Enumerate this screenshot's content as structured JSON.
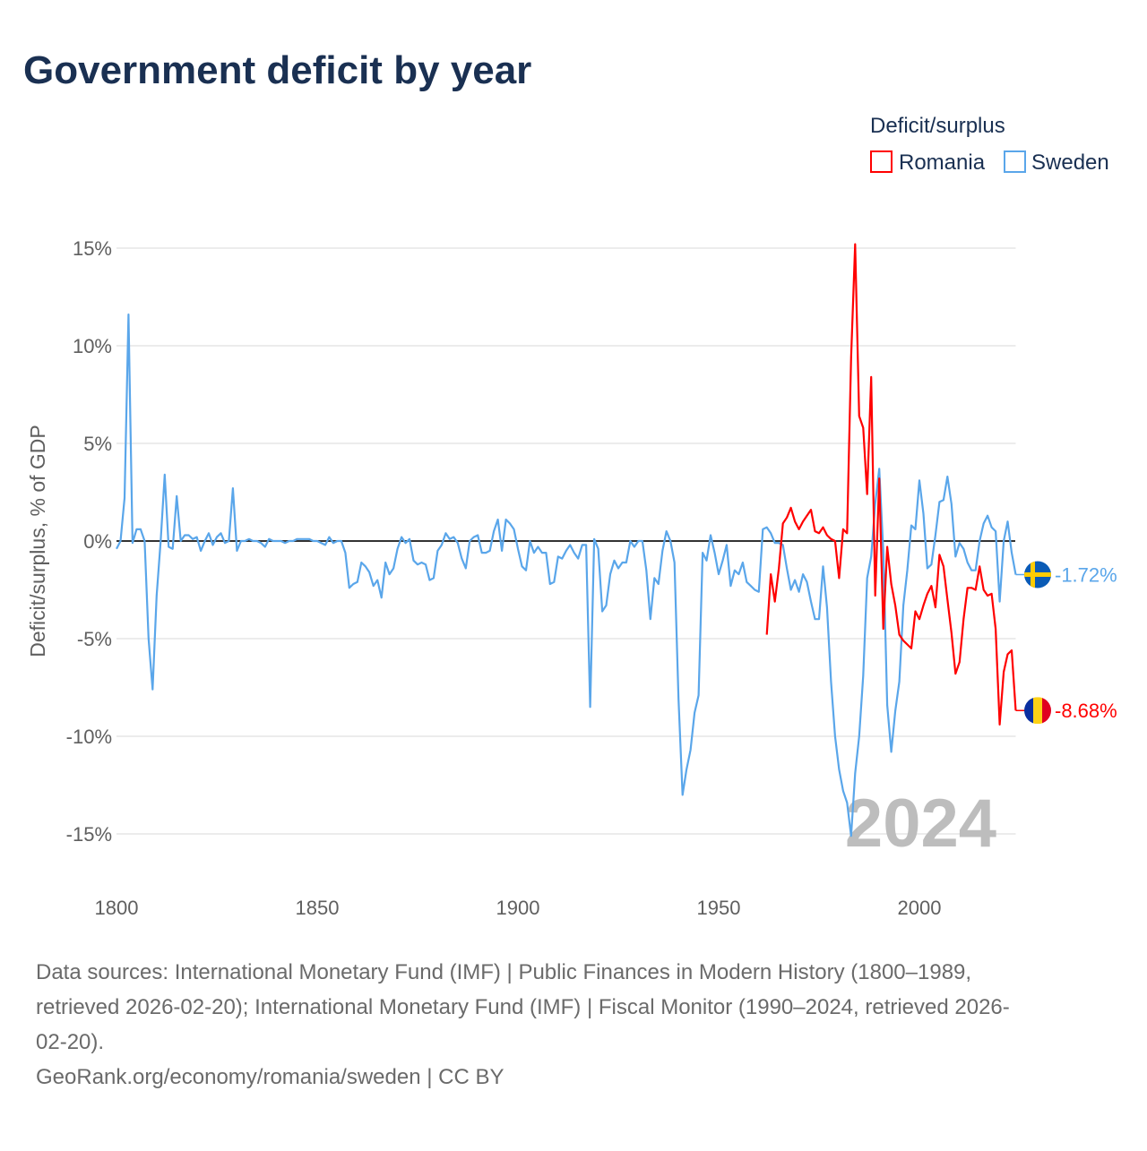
{
  "chart_data": {
    "type": "line",
    "title": "Government deficit by year",
    "ylabel": "Deficit/surplus, % of GDP",
    "xlabel": "",
    "xlim": [
      1800,
      2024
    ],
    "ylim": [
      -15,
      15
    ],
    "x_ticks": [
      1800,
      1850,
      1900,
      1950,
      2000
    ],
    "x_tick_labels": [
      "1800",
      "1850",
      "1900",
      "1950",
      "2000"
    ],
    "y_ticks": [
      15,
      10,
      5,
      0,
      -5,
      -10,
      -15
    ],
    "y_tick_labels": [
      "15%",
      "10%",
      "5%",
      "0%",
      "-5%",
      "-10%",
      "-15%"
    ],
    "grid": true,
    "legend": {
      "title": "Deficit/surplus",
      "placement": "top-right"
    },
    "year_watermark": "2024",
    "series": [
      {
        "name": "Romania",
        "color": "#ff0000",
        "start_year": 1962,
        "end_label": "-8.68%",
        "flag": "romania-flag",
        "values": [
          -4.8,
          -1.7,
          -3.1,
          -1.4,
          0.9,
          1.2,
          1.7,
          1.0,
          0.6,
          1.0,
          1.3,
          1.6,
          0.5,
          0.4,
          0.7,
          0.3,
          0.1,
          0.0,
          -1.9,
          0.6,
          0.4,
          9.4,
          15.2,
          6.4,
          5.8,
          2.4,
          8.4,
          -2.8,
          3.2,
          -4.5,
          -0.3,
          -2.2,
          -3.3,
          -4.8,
          -5.1,
          -5.3,
          -5.5,
          -3.6,
          -4.0,
          -3.3,
          -2.7,
          -2.3,
          -3.4,
          -0.7,
          -1.3,
          -3.0,
          -4.7,
          -6.8,
          -6.2,
          -4.0,
          -2.4,
          -2.4,
          -2.5,
          -1.3,
          -2.5,
          -2.8,
          -2.7,
          -4.5,
          -9.4,
          -6.7,
          -5.8,
          -5.6,
          -8.68
        ]
      },
      {
        "name": "Sweden",
        "color": "#5aa6ea",
        "start_year": 1800,
        "end_label": "-1.72%",
        "flag": "sweden-flag",
        "values": [
          -0.4,
          0,
          2.2,
          11.6,
          -0.1,
          0.6,
          0.6,
          0,
          -5.0,
          -7.6,
          -2.8,
          0,
          3.4,
          -0.3,
          -0.4,
          2.3,
          0,
          0.3,
          0.3,
          0.1,
          0.2,
          -0.5,
          0,
          0.4,
          -0.2,
          0.2,
          0.4,
          -0.1,
          0,
          2.7,
          -0.5,
          0,
          0,
          0.1,
          0,
          0,
          -0.1,
          -0.3,
          0.1,
          0,
          0,
          0,
          -0.1,
          0,
          0,
          0.1,
          0.1,
          0.1,
          0.1,
          0,
          0,
          -0.1,
          -0.2,
          0.2,
          -0.1,
          0,
          0,
          -0.6,
          -2.4,
          -2.2,
          -2.1,
          -1.1,
          -1.3,
          -1.6,
          -2.3,
          -2.0,
          -2.9,
          -1.1,
          -1.7,
          -1.4,
          -0.4,
          0.2,
          -0.1,
          0.1,
          -1.0,
          -1.2,
          -1.1,
          -1.2,
          -2.0,
          -1.9,
          -0.5,
          -0.2,
          0.4,
          0.1,
          0.2,
          -0.1,
          -0.9,
          -1.4,
          0,
          0.2,
          0.3,
          -0.6,
          -0.6,
          -0.5,
          0.5,
          1.1,
          -0.5,
          1.1,
          0.9,
          0.6,
          -0.4,
          -1.3,
          -1.5,
          0,
          -0.6,
          -0.3,
          -0.6,
          -0.6,
          -2.2,
          -2.1,
          -0.8,
          -0.9,
          -0.5,
          -0.2,
          -0.6,
          -0.9,
          -0.2,
          -0.2,
          -8.5,
          0.1,
          -0.4,
          -3.6,
          -3.3,
          -1.7,
          -1.0,
          -1.4,
          -1.1,
          -1.1,
          0,
          -0.3,
          0,
          0,
          -1.5,
          -4.0,
          -1.9,
          -2.2,
          -0.5,
          0.5,
          0,
          -1.1,
          -8.1,
          -13.0,
          -11.7,
          -10.7,
          -8.8,
          -7.9,
          -0.6,
          -1.0,
          0.3,
          -0.6,
          -1.7,
          -1.0,
          -0.2,
          -2.3,
          -1.5,
          -1.7,
          -1.1,
          -2.1,
          -2.3,
          -2.5,
          -2.6,
          0.6,
          0.7,
          0.4,
          -0.1,
          -0.1,
          -0.2,
          -1.4,
          -2.5,
          -2.0,
          -2.6,
          -1.7,
          -2.1,
          -3.1,
          -4.0,
          -4.0,
          -1.3,
          -3.4,
          -7.2,
          -10.0,
          -11.7,
          -12.8,
          -13.4,
          -15.1,
          -11.9,
          -10.0,
          -6.9,
          -1.9,
          -0.8,
          1.9,
          3.7,
          -0.5,
          -8.4,
          -10.8,
          -8.7,
          -7.2,
          -3.3,
          -1.5,
          0.8,
          0.6,
          3.1,
          1.4,
          -1.4,
          -1.2,
          0.3,
          2.0,
          2.1,
          3.3,
          1.9,
          -0.8,
          -0.1,
          -0.4,
          -1.1,
          -1.5,
          -1.5,
          0.0,
          0.9,
          1.3,
          0.7,
          0.5,
          -3.1,
          0.0,
          1.0,
          -0.6,
          -1.72
        ]
      }
    ]
  },
  "footer": {
    "line1": "Data sources: International Monetary Fund (IMF) | Public Finances in Modern History (1800–1989,",
    "line2": "retrieved 2026-02-20); International Monetary Fund (IMF) | Fiscal Monitor (1990–2024, retrieved 2026-",
    "line3": "02-20).",
    "line4": "GeoRank.org/economy/romania/sweden | CC BY"
  }
}
